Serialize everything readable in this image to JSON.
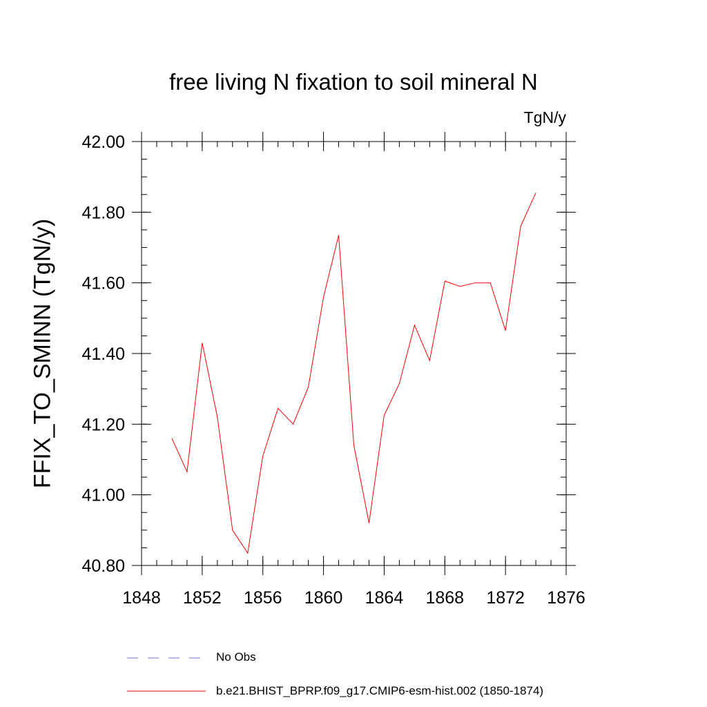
{
  "chart_data": {
    "type": "line",
    "title": "free living N fixation to soil mineral N",
    "units_label": "TgN/y",
    "ylabel": "FFIX_TO_SMINN  (TgN/y)",
    "xlabel": "",
    "xlim": [
      1848,
      1876
    ],
    "ylim": [
      40.8,
      42.0
    ],
    "x_ticks": [
      1848,
      1852,
      1856,
      1860,
      1864,
      1868,
      1872,
      1876
    ],
    "x_tick_labels": [
      "1848",
      "1852",
      "1856",
      "1860",
      "1864",
      "1868",
      "1872",
      "1876"
    ],
    "y_ticks": [
      40.8,
      41.0,
      41.2,
      41.4,
      41.6,
      41.8,
      42.0
    ],
    "y_tick_labels": [
      "40.80",
      "41.00",
      "41.20",
      "41.40",
      "41.60",
      "41.80",
      "42.00"
    ],
    "grid": false,
    "legend_position": "bottom",
    "series": [
      {
        "name": "b.e21.BHIST_BPRP.f09_g17.CMIP6-esm-hist.002 (1850-1874)",
        "color": "#ff0000",
        "dash": "solid",
        "x": [
          1850,
          1851,
          1852,
          1853,
          1854,
          1855,
          1856,
          1857,
          1858,
          1859,
          1860,
          1861,
          1862,
          1863,
          1864,
          1865,
          1866,
          1867,
          1868,
          1869,
          1870,
          1871,
          1872,
          1873,
          1874
        ],
        "y": [
          41.16,
          41.065,
          41.43,
          41.22,
          40.9,
          40.835,
          41.11,
          41.245,
          41.2,
          41.305,
          41.56,
          41.735,
          41.14,
          40.92,
          41.225,
          41.315,
          41.48,
          41.38,
          41.605,
          41.59,
          41.6,
          41.6,
          41.465,
          41.76,
          41.855
        ]
      }
    ],
    "legend": [
      {
        "name": "No Obs",
        "color": "#6e6ec8",
        "dash": "dashed"
      },
      {
        "name": "b.e21.BHIST_BPRP.f09_g17.CMIP6-esm-hist.002 (1850-1874)",
        "color": "#ff0000",
        "dash": "solid"
      }
    ]
  }
}
